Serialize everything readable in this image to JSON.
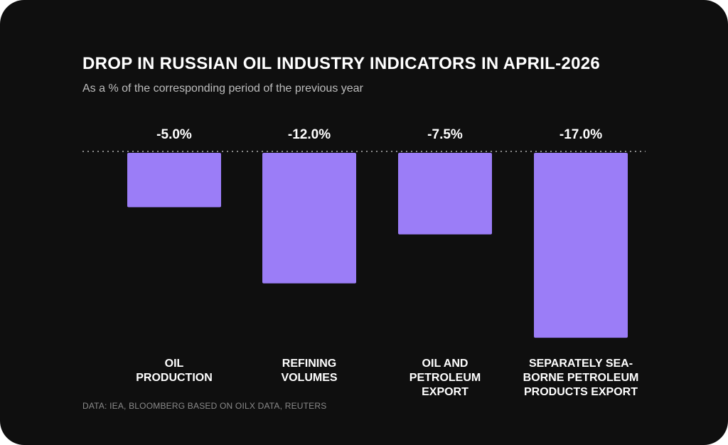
{
  "title": "DROP IN RUSSIAN OIL INDUSTRY INDICATORS IN APRIL-2026",
  "subtitle": "As a % of the corresponding period of the previous year",
  "source": "DATA: IEA, BLOOMBERG BASED ON OILX DATA, REUTERS",
  "colors": {
    "background": "#0f0f0f",
    "bar": "#9b7df7",
    "text": "#ffffff",
    "baseline": "#8a8a8a"
  },
  "chart_data": {
    "type": "bar",
    "categories": [
      [
        "OIL",
        "PRODUCTION"
      ],
      [
        "REFINING",
        "VOLUMES"
      ],
      [
        "OIL AND",
        "PETROLEUM",
        "EXPORT"
      ],
      [
        "SEPARATELY SEA-",
        "BORNE PETROLEUM",
        "PRODUCTS EXPORT"
      ]
    ],
    "values": [
      -5.0,
      -12.0,
      -7.5,
      -17.0
    ],
    "data_labels": [
      "-5.0%",
      "-12.0%",
      "-7.5%",
      "-17.0%"
    ],
    "ylim": [
      -17,
      0
    ],
    "baseline": 0,
    "grid": false,
    "legend": "none"
  }
}
